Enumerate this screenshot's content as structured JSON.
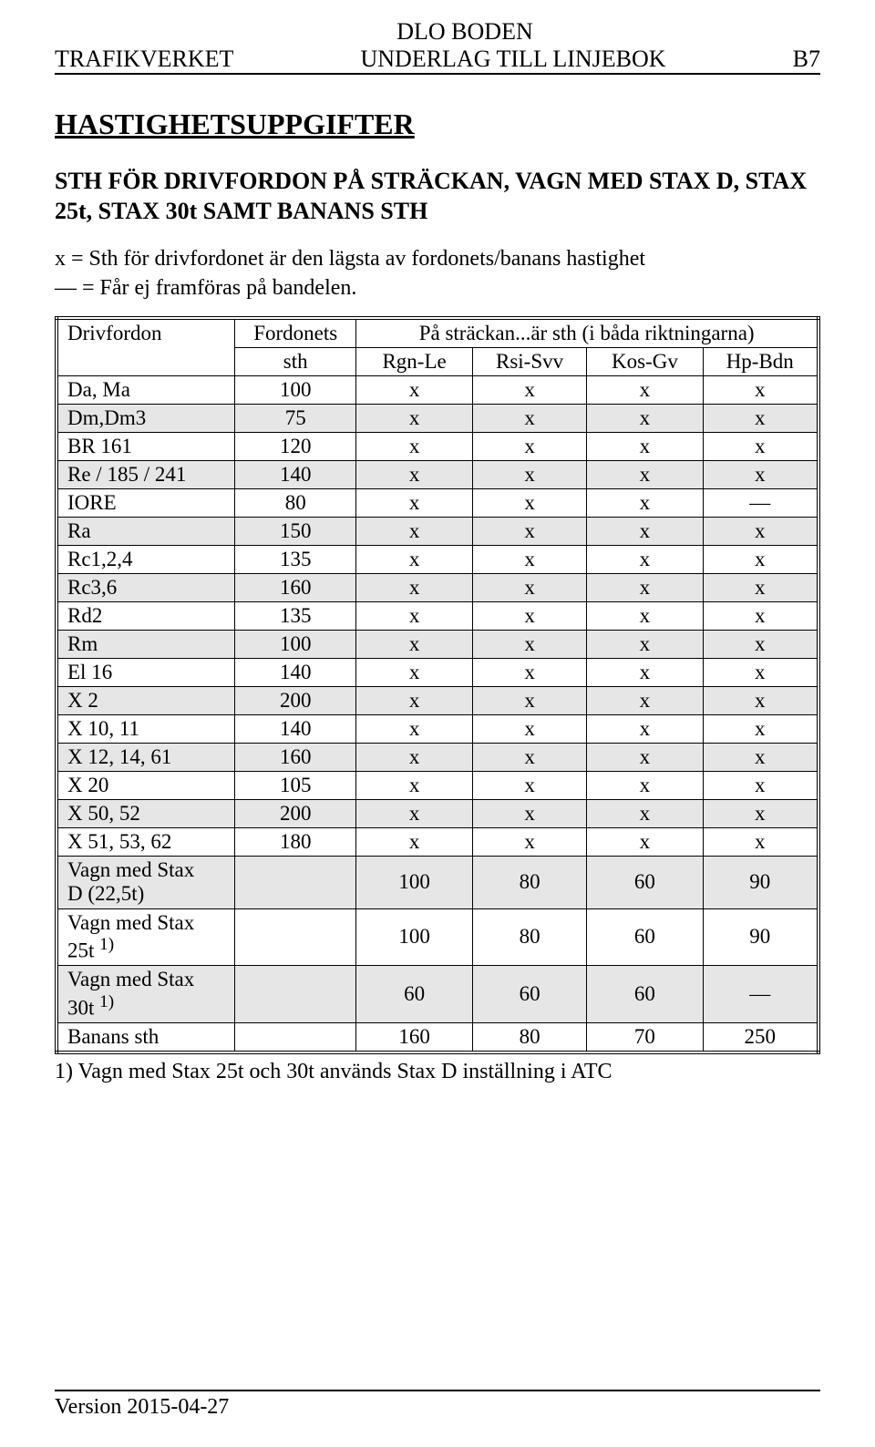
{
  "header": {
    "line1": "DLO BODEN",
    "trafikverket": "TRAFIKVERKET",
    "underlag": "UNDERLAG TILL LINJEBOK",
    "page_code": "B7"
  },
  "headings": {
    "main": "HASTIGHETSUPPGIFTER",
    "sub": "STH FÖR DRIVFORDON PÅ STRÄCKAN, VAGN MED STAX D, STAX 25t, STAX 30t SAMT BANANS STH"
  },
  "legend": {
    "x": "x =  Sth för drivfordonet är den lägsta av fordonets/banans hastighet",
    "dash": "— = Får ej framföras på bandelen."
  },
  "table": {
    "hdr_drivfordon": "Drivfordon",
    "hdr_fordonets_1": "Fordonets",
    "hdr_fordonets_2": "sth",
    "hdr_strackan": "På sträckan...är sth (i båda riktningarna)",
    "sub_cols": [
      "Rgn-Le",
      "Rsi-Svv",
      "Kos-Gv",
      "Hp-Bdn"
    ],
    "rows": [
      {
        "label": "Da, Ma",
        "sth": "100",
        "vals": [
          "x",
          "x",
          "x",
          "x"
        ],
        "shaded": false
      },
      {
        "label": "Dm,Dm3",
        "sth": "75",
        "vals": [
          "x",
          "x",
          "x",
          "x"
        ],
        "shaded": true
      },
      {
        "label": "BR 161",
        "sth": "120",
        "vals": [
          "x",
          "x",
          "x",
          "x"
        ],
        "shaded": false
      },
      {
        "label": "Re / 185 / 241",
        "sth": "140",
        "vals": [
          "x",
          "x",
          "x",
          "x"
        ],
        "shaded": true
      },
      {
        "label": "IORE",
        "sth": "80",
        "vals": [
          "x",
          "x",
          "x",
          "—"
        ],
        "shaded": false
      },
      {
        "label": "Ra",
        "sth": "150",
        "vals": [
          "x",
          "x",
          "x",
          "x"
        ],
        "shaded": true
      },
      {
        "label": "Rc1,2,4",
        "sth": "135",
        "vals": [
          "x",
          "x",
          "x",
          "x"
        ],
        "shaded": false
      },
      {
        "label": "Rc3,6",
        "sth": "160",
        "vals": [
          "x",
          "x",
          "x",
          "x"
        ],
        "shaded": true
      },
      {
        "label": "Rd2",
        "sth": "135",
        "vals": [
          "x",
          "x",
          "x",
          "x"
        ],
        "shaded": false
      },
      {
        "label": "Rm",
        "sth": "100",
        "vals": [
          "x",
          "x",
          "x",
          "x"
        ],
        "shaded": true
      },
      {
        "label": "El 16",
        "sth": "140",
        "vals": [
          "x",
          "x",
          "x",
          "x"
        ],
        "shaded": false
      },
      {
        "label": "X 2",
        "sth": "200",
        "vals": [
          "x",
          "x",
          "x",
          "x"
        ],
        "shaded": true
      },
      {
        "label": "X 10, 11",
        "sth": "140",
        "vals": [
          "x",
          "x",
          "x",
          "x"
        ],
        "shaded": false
      },
      {
        "label": "X 12, 14, 61",
        "sth": "160",
        "vals": [
          "x",
          "x",
          "x",
          "x"
        ],
        "shaded": true
      },
      {
        "label": "X 20",
        "sth": "105",
        "vals": [
          "x",
          "x",
          "x",
          "x"
        ],
        "shaded": false
      },
      {
        "label": "X 50, 52",
        "sth": "200",
        "vals": [
          "x",
          "x",
          "x",
          "x"
        ],
        "shaded": true
      },
      {
        "label": "X 51, 53, 62",
        "sth": "180",
        "vals": [
          "x",
          "x",
          "x",
          "x"
        ],
        "shaded": false
      }
    ],
    "tall_rows": [
      {
        "label_1": "Vagn med Stax",
        "label_2": "D (22,5t)",
        "sth": "",
        "vals": [
          "100",
          "80",
          "60",
          "90"
        ],
        "shaded": true
      },
      {
        "label_1": "Vagn med Stax",
        "label_2": "25t ",
        "sup": "1)",
        "sth": "",
        "vals": [
          "100",
          "80",
          "60",
          "90"
        ],
        "shaded": false
      },
      {
        "label_1": "Vagn med Stax",
        "label_2": "30t ",
        "sup": "1)",
        "sth": "",
        "vals": [
          "60",
          "60",
          "60",
          "—"
        ],
        "shaded": true
      }
    ],
    "final_row": {
      "label": "Banans sth",
      "sth": "",
      "vals": [
        "160",
        "80",
        "70",
        "250"
      ],
      "shaded": false
    }
  },
  "footnote": "1) Vagn med Stax 25t och 30t används Stax D inställning i ATC",
  "footer": {
    "version": "Version 2015-04-27"
  }
}
